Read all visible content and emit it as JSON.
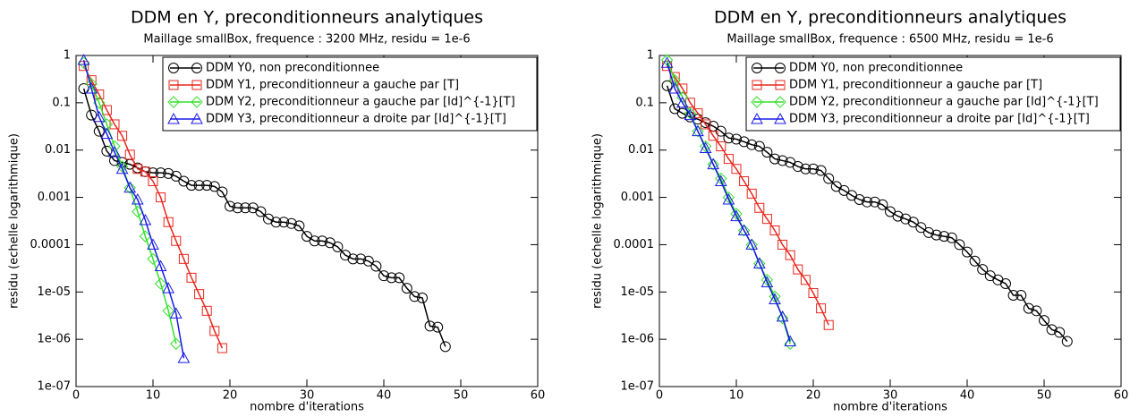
{
  "chart_data": [
    {
      "type": "line",
      "title": "DDM en Y, preconditionneurs analytiques",
      "subtitle": "Maillage smallBox, frequence : 3200 MHz, residu = 1e-6",
      "xlabel": "nombre d'iterations",
      "ylabel": "residu (echelle logarithmique)",
      "log_y": true,
      "legend": "upper right",
      "xlim": [
        0,
        60
      ],
      "xticks": [
        0,
        10,
        20,
        30,
        40,
        50,
        60
      ],
      "ylim": [
        1e-07,
        1
      ],
      "yticks": [
        {
          "value": 1e-07,
          "label": "1e-07"
        },
        {
          "value": 1e-06,
          "label": "1e-06"
        },
        {
          "value": 1e-05,
          "label": "1e-05"
        },
        0.0001,
        0.001,
        0.01,
        0.1,
        1
      ],
      "series": [
        {
          "name": "DDM Y0, non preconditionnee",
          "color": "#000000",
          "marker": "circle",
          "x": [
            1,
            2,
            3,
            4,
            5,
            6,
            7,
            8,
            9,
            10,
            11,
            12,
            13,
            14,
            15,
            16,
            17,
            18,
            19,
            20,
            21,
            22,
            23,
            24,
            25,
            26,
            27,
            28,
            29,
            30,
            31,
            32,
            33,
            34,
            35,
            36,
            37,
            38,
            39,
            40,
            41,
            42,
            43,
            44,
            45,
            46,
            47,
            48
          ],
          "values": [
            0.2,
            0.055,
            0.025,
            0.0095,
            0.006,
            0.0055,
            0.005,
            0.0042,
            0.0035,
            0.0033,
            0.0033,
            0.0032,
            0.0028,
            0.0022,
            0.0018,
            0.0018,
            0.0018,
            0.0017,
            0.0013,
            0.00065,
            0.0006,
            0.0006,
            0.0006,
            0.0005,
            0.00035,
            0.0003,
            0.0003,
            0.00028,
            0.00025,
            0.00015,
            0.00012,
            0.00012,
            0.00011,
            9e-05,
            6e-05,
            5e-05,
            5e-05,
            4.5e-05,
            3.5e-05,
            2.2e-05,
            2e-05,
            2e-05,
            1.2e-05,
            8e-06,
            7.5e-06,
            1.9e-06,
            1.8e-06,
            7e-07
          ]
        },
        {
          "name": "DDM Y1, preconditionneur a gauche par [T]",
          "color": "#e8261c",
          "marker": "square",
          "x": [
            1,
            2,
            3,
            4,
            5,
            6,
            7,
            8,
            9,
            10,
            11,
            12,
            13,
            14,
            15,
            16,
            17,
            18,
            19
          ],
          "values": [
            0.6,
            0.3,
            0.15,
            0.07,
            0.035,
            0.02,
            0.008,
            0.004,
            0.0035,
            0.0022,
            0.001,
            0.0003,
            0.00012,
            5e-05,
            2e-05,
            9e-06,
            4e-06,
            1.5e-06,
            6.5e-07
          ]
        },
        {
          "name": "DDM Y2, preconditionneur a gauche par [Id]^{-1}[T]",
          "color": "#33e02a",
          "marker": "diamond",
          "x": [
            1,
            2,
            3,
            4,
            5,
            6,
            7,
            8,
            9,
            10,
            11,
            12,
            13
          ],
          "values": [
            0.7,
            0.25,
            0.1,
            0.035,
            0.012,
            0.0045,
            0.0016,
            0.0005,
            0.00015,
            5e-05,
            1.5e-05,
            4e-06,
            8e-07
          ]
        },
        {
          "name": "DDM Y3, preconditionneur a droite par [Id]^{-1}[T]",
          "color": "#1a1ae8",
          "marker": "triangle",
          "x": [
            1,
            2,
            3,
            4,
            5,
            6,
            7,
            8,
            9,
            10,
            11,
            12,
            13,
            14
          ],
          "values": [
            0.8,
            0.2,
            0.05,
            0.022,
            0.009,
            0.004,
            0.0016,
            0.0009,
            0.00033,
            0.0001,
            3.5e-05,
            1.2e-05,
            3.5e-06,
            4e-07
          ]
        }
      ]
    },
    {
      "type": "line",
      "title": "DDM en Y, preconditionneurs analytiques",
      "subtitle": "Maillage smallBox, frequence : 6500 MHz, residu = 1e-6",
      "xlabel": "nombre d'iterations",
      "ylabel": "residu (echelle logarithmique)",
      "log_y": true,
      "legend": "upper right",
      "xlim": [
        0,
        60
      ],
      "xticks": [
        0,
        10,
        20,
        30,
        40,
        50,
        60
      ],
      "ylim": [
        1e-07,
        1
      ],
      "yticks": [
        {
          "value": 1e-07,
          "label": "1e-07"
        },
        {
          "value": 1e-06,
          "label": "1e-06"
        },
        {
          "value": 1e-05,
          "label": "1e-05"
        },
        0.0001,
        0.001,
        0.01,
        0.1,
        1
      ],
      "series": [
        {
          "name": "DDM Y0, non preconditionnee",
          "color": "#000000",
          "marker": "circle",
          "x": [
            1,
            2,
            3,
            4,
            5,
            6,
            7,
            8,
            9,
            10,
            11,
            12,
            13,
            14,
            15,
            16,
            17,
            18,
            19,
            20,
            21,
            22,
            23,
            24,
            25,
            26,
            27,
            28,
            29,
            30,
            31,
            32,
            33,
            34,
            35,
            36,
            37,
            38,
            39,
            40,
            41,
            42,
            43,
            44,
            45,
            46,
            47,
            48,
            49,
            50,
            51,
            52,
            53
          ],
          "values": [
            0.23,
            0.075,
            0.06,
            0.05,
            0.045,
            0.038,
            0.032,
            0.025,
            0.018,
            0.017,
            0.015,
            0.013,
            0.012,
            0.009,
            0.0065,
            0.006,
            0.0055,
            0.0045,
            0.004,
            0.004,
            0.0037,
            0.0025,
            0.0017,
            0.0014,
            0.0011,
            0.0009,
            0.0008,
            0.0008,
            0.0007,
            0.0005,
            0.0004,
            0.00035,
            0.0003,
            0.00023,
            0.00018,
            0.00016,
            0.00015,
            0.00014,
            0.0001,
            7e-05,
            4.5e-05,
            3e-05,
            2.2e-05,
            1.8e-05,
            1.5e-05,
            8.5e-06,
            8.5e-06,
            4.5e-06,
            4e-06,
            2.5e-06,
            1.6e-06,
            1.4e-06,
            9e-07
          ]
        },
        {
          "name": "DDM Y1, preconditionneur a gauche par [T]",
          "color": "#e8261c",
          "marker": "square",
          "x": [
            1,
            2,
            3,
            4,
            5,
            6,
            7,
            8,
            9,
            10,
            11,
            12,
            13,
            14,
            15,
            16,
            17,
            18,
            19,
            20,
            21,
            22
          ],
          "values": [
            0.6,
            0.35,
            0.2,
            0.1,
            0.06,
            0.035,
            0.02,
            0.012,
            0.0065,
            0.004,
            0.0022,
            0.0012,
            0.0006,
            0.00035,
            0.0002,
            0.0001,
            6e-05,
            3e-05,
            1.8e-05,
            9.5e-06,
            4.5e-06,
            2e-06
          ]
        },
        {
          "name": "DDM Y2, preconditionneur a gauche par [Id]^{-1}[T]",
          "color": "#33e02a",
          "marker": "diamond",
          "x": [
            1,
            2,
            3,
            4,
            5,
            6,
            7,
            8,
            9,
            10,
            11,
            12,
            13,
            14,
            15,
            16,
            17
          ],
          "values": [
            0.8,
            0.3,
            0.13,
            0.06,
            0.025,
            0.012,
            0.005,
            0.0025,
            0.001,
            0.00045,
            0.0002,
            0.0001,
            4e-05,
            1.8e-05,
            8e-06,
            2.8e-06,
            8e-07
          ]
        },
        {
          "name": "DDM Y3, preconditionneur a droite par [Id]^{-1}[T]",
          "color": "#1a1ae8",
          "marker": "triangle",
          "x": [
            1,
            2,
            3,
            4,
            5,
            6,
            7,
            8,
            9,
            10,
            11,
            12,
            13,
            14,
            15,
            16,
            17
          ],
          "values": [
            0.7,
            0.2,
            0.1,
            0.055,
            0.025,
            0.011,
            0.005,
            0.0022,
            0.0009,
            0.0004,
            0.0002,
            0.0001,
            4e-05,
            1.6e-05,
            7e-06,
            3e-06,
            9e-07
          ]
        }
      ]
    }
  ]
}
